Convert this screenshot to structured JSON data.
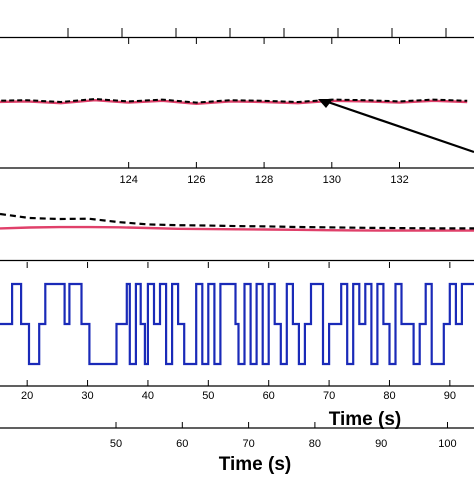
{
  "chart_data": [
    {
      "type": "line",
      "panel": "top-strip",
      "x": [],
      "series": []
    },
    {
      "type": "line",
      "panel": "zoom-inset",
      "x": [
        120,
        121,
        122,
        123,
        124,
        125,
        126,
        127,
        128,
        129,
        130,
        131,
        132,
        133,
        134
      ],
      "xticks": [
        "124",
        "126",
        "128",
        "130",
        "132"
      ],
      "xlim": [
        120.2,
        134.2
      ],
      "series": [
        {
          "color": "#e0406a",
          "style": "solid",
          "values": [
            0.0,
            0.01,
            -0.02,
            0.03,
            -0.01,
            0.02,
            -0.03,
            0.01,
            0.0,
            -0.02,
            0.02,
            0.01,
            -0.01,
            0.02,
            0.0
          ]
        },
        {
          "color": "#000000",
          "style": "dashed",
          "values": [
            0.02,
            0.03,
            0.0,
            0.05,
            0.01,
            0.04,
            -0.01,
            0.03,
            0.02,
            0.0,
            0.04,
            0.03,
            0.01,
            0.04,
            0.02
          ]
        }
      ]
    },
    {
      "type": "line",
      "panel": "response",
      "x": [
        0,
        1,
        2,
        3,
        4,
        5,
        6,
        7,
        8,
        9,
        10,
        11,
        12,
        13,
        14,
        15,
        16
      ],
      "series": [
        {
          "color": "#e0406a",
          "style": "solid",
          "values": [
            0.2,
            0.25,
            0.27,
            0.27,
            0.26,
            0.22,
            0.18,
            0.16,
            0.15,
            0.14,
            0.12,
            0.1,
            0.09,
            0.08,
            0.08,
            0.08,
            0.08
          ]
        },
        {
          "color": "#000000",
          "style": "dashed",
          "values": [
            1.0,
            0.78,
            0.72,
            0.74,
            0.55,
            0.42,
            0.38,
            0.36,
            0.33,
            0.31,
            0.28,
            0.26,
            0.24,
            0.22,
            0.21,
            0.2,
            0.2
          ]
        }
      ]
    },
    {
      "type": "line",
      "panel": "prbs-input",
      "xlim": [
        15.5,
        94
      ],
      "xticks": [
        "20",
        "30",
        "40",
        "50",
        "60",
        "70",
        "80",
        "90"
      ],
      "xlabel": "Time (s)",
      "series": [
        {
          "color": "#1a2ab8",
          "style": "solid",
          "t": [
            15.5,
            17.5,
            17.5,
            19,
            19,
            20.3,
            20.3,
            22,
            22,
            23,
            23,
            26.2,
            26.2,
            27,
            27,
            29,
            29,
            30.3,
            30.3,
            34.8,
            34.8,
            36.5,
            36.5,
            37,
            37,
            38,
            38,
            38.8,
            38.8,
            39.5,
            39.5,
            40,
            40,
            41,
            41,
            42,
            42,
            43,
            43,
            44,
            44,
            45,
            45,
            46,
            46,
            48,
            48,
            49,
            49,
            50,
            50,
            51,
            51,
            52,
            52,
            54.5,
            54.5,
            55,
            55,
            56,
            56,
            57,
            57,
            58,
            58,
            59,
            59,
            60,
            60,
            61,
            61,
            62,
            62,
            63,
            63,
            64,
            64,
            65,
            65,
            66,
            66,
            67,
            67,
            69,
            69,
            70,
            70,
            72,
            72,
            73,
            73,
            74,
            74,
            75,
            75,
            76,
            76,
            77,
            77,
            78,
            78,
            79,
            79,
            80,
            80,
            81,
            81,
            82,
            82,
            84,
            84,
            85,
            85,
            86,
            86,
            87,
            87,
            89,
            89,
            90,
            90,
            91,
            91,
            92,
            92,
            94
          ],
          "values": [
            0,
            0,
            1,
            1,
            0,
            0,
            -1,
            -1,
            0,
            0,
            1,
            1,
            0,
            0,
            1,
            1,
            0,
            0,
            -1,
            -1,
            0,
            0,
            1,
            1,
            -1,
            -1,
            1,
            1,
            0,
            0,
            -1,
            -1,
            1,
            1,
            0,
            0,
            1,
            1,
            -1,
            -1,
            1,
            1,
            0,
            0,
            -1,
            -1,
            1,
            1,
            -1,
            -1,
            1,
            1,
            -1,
            -1,
            1,
            1,
            0,
            0,
            -1,
            -1,
            1,
            1,
            -1,
            -1,
            1,
            1,
            -1,
            -1,
            1,
            1,
            0,
            0,
            -1,
            -1,
            1,
            1,
            0,
            0,
            -1,
            -1,
            0,
            0,
            1,
            1,
            -1,
            -1,
            0,
            0,
            1,
            1,
            -1,
            -1,
            1,
            1,
            0,
            0,
            1,
            1,
            -1,
            -1,
            1,
            1,
            0,
            0,
            -1,
            -1,
            1,
            1,
            0,
            0,
            -1,
            -1,
            0,
            0,
            1,
            1,
            -1,
            -1,
            0,
            0,
            1,
            1,
            0,
            0,
            1,
            1
          ]
        }
      ]
    },
    {
      "type": "line",
      "panel": "bottom-axis",
      "xlim": [
        32.5,
        104
      ],
      "xticks": [
        "50",
        "60",
        "70",
        "80",
        "90",
        "100"
      ],
      "xlabel": "Time (s)",
      "series": []
    }
  ]
}
